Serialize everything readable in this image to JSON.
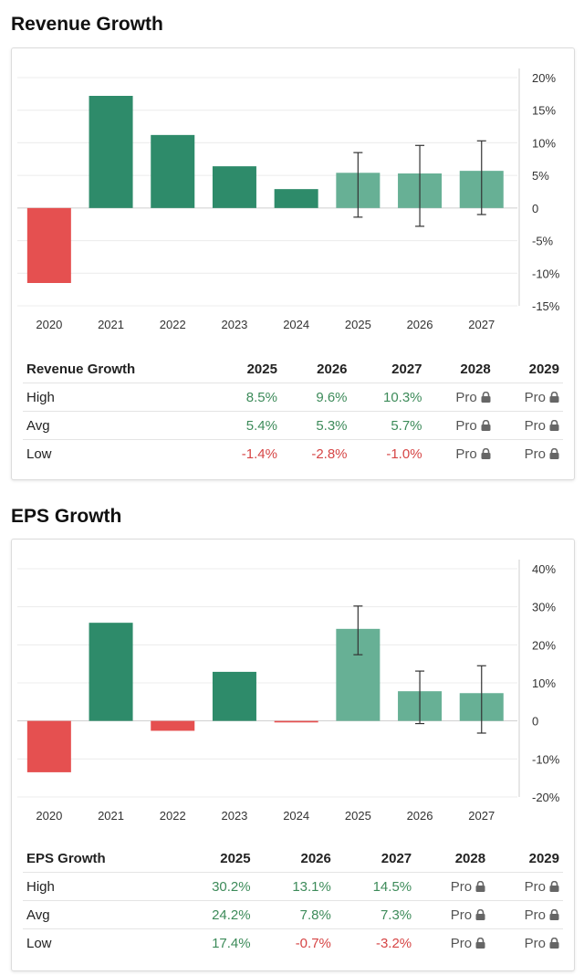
{
  "sections": [
    {
      "title": "Revenue Growth",
      "chart_data": {
        "type": "bar",
        "categories": [
          "2020",
          "2021",
          "2022",
          "2023",
          "2024",
          "2025",
          "2026",
          "2027"
        ],
        "values": [
          -11.5,
          17.2,
          11.2,
          6.4,
          2.9,
          5.4,
          5.3,
          5.7
        ],
        "estimated": [
          false,
          false,
          false,
          false,
          false,
          true,
          true,
          true
        ],
        "error_high": [
          null,
          null,
          null,
          null,
          null,
          8.5,
          9.6,
          10.3
        ],
        "error_low": [
          null,
          null,
          null,
          null,
          null,
          -1.4,
          -2.8,
          -1.0
        ],
        "y_ticks": [
          "20%",
          "15%",
          "10%",
          "5%",
          "0",
          "-5%",
          "-10%",
          "-15%"
        ],
        "y_tick_values": [
          20,
          15,
          10,
          5,
          0,
          -5,
          -10,
          -15
        ],
        "ylim": [
          -15,
          20
        ],
        "y_axis_side": "right",
        "grid": true,
        "colors": {
          "positive": "#2e8b6a",
          "estimate": "#67b095",
          "negative": "#e55050",
          "error_bar": "#333333"
        }
      },
      "table": {
        "header": [
          "Revenue Growth",
          "2025",
          "2026",
          "2027",
          "2028",
          "2029"
        ],
        "rows": [
          {
            "label": "High",
            "cells": [
              "8.5%",
              "9.6%",
              "10.3%",
              "Pro",
              "Pro"
            ]
          },
          {
            "label": "Avg",
            "cells": [
              "5.4%",
              "5.3%",
              "5.7%",
              "Pro",
              "Pro"
            ]
          },
          {
            "label": "Low",
            "cells": [
              "-1.4%",
              "-2.8%",
              "-1.0%",
              "Pro",
              "Pro"
            ]
          }
        ]
      }
    },
    {
      "title": "EPS Growth",
      "chart_data": {
        "type": "bar",
        "categories": [
          "2020",
          "2021",
          "2022",
          "2023",
          "2024",
          "2025",
          "2026",
          "2027"
        ],
        "values": [
          -13.5,
          25.8,
          -2.6,
          12.9,
          -0.4,
          24.2,
          7.8,
          7.3
        ],
        "estimated": [
          false,
          false,
          false,
          false,
          false,
          true,
          true,
          true
        ],
        "error_high": [
          null,
          null,
          null,
          null,
          null,
          30.2,
          13.1,
          14.5
        ],
        "error_low": [
          null,
          null,
          null,
          null,
          null,
          17.4,
          -0.7,
          -3.2
        ],
        "y_ticks": [
          "40%",
          "30%",
          "20%",
          "10%",
          "0",
          "-10%",
          "-20%"
        ],
        "y_tick_values": [
          40,
          30,
          20,
          10,
          0,
          -10,
          -20
        ],
        "ylim": [
          -20,
          40
        ],
        "y_axis_side": "right",
        "grid": true,
        "colors": {
          "positive": "#2e8b6a",
          "estimate": "#67b095",
          "negative": "#e55050",
          "error_bar": "#333333"
        }
      },
      "table": {
        "header": [
          "EPS Growth",
          "2025",
          "2026",
          "2027",
          "2028",
          "2029"
        ],
        "rows": [
          {
            "label": "High",
            "cells": [
              "30.2%",
              "13.1%",
              "14.5%",
              "Pro",
              "Pro"
            ]
          },
          {
            "label": "Avg",
            "cells": [
              "24.2%",
              "7.8%",
              "7.3%",
              "Pro",
              "Pro"
            ]
          },
          {
            "label": "Low",
            "cells": [
              "17.4%",
              "-0.7%",
              "-3.2%",
              "Pro",
              "Pro"
            ]
          }
        ]
      }
    }
  ]
}
